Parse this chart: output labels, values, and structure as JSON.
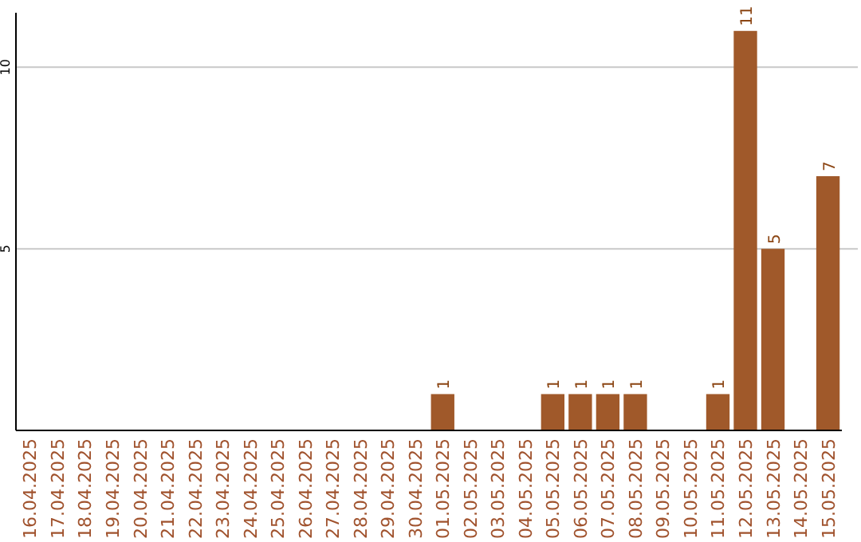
{
  "chart_data": {
    "type": "bar",
    "categories": [
      "16.04.2025",
      "17.04.2025",
      "18.04.2025",
      "19.04.2025",
      "20.04.2025",
      "21.04.2025",
      "22.04.2025",
      "23.04.2025",
      "24.04.2025",
      "25.04.2025",
      "26.04.2025",
      "27.04.2025",
      "28.04.2025",
      "29.04.2025",
      "30.04.2025",
      "01.05.2025",
      "02.05.2025",
      "03.05.2025",
      "04.05.2025",
      "05.05.2025",
      "06.05.2025",
      "07.05.2025",
      "08.05.2025",
      "09.05.2025",
      "10.05.2025",
      "11.05.2025",
      "12.05.2025",
      "13.05.2025",
      "14.05.2025",
      "15.05.2025"
    ],
    "values": [
      0,
      0,
      0,
      0,
      0,
      0,
      0,
      0,
      0,
      0,
      0,
      0,
      0,
      0,
      0,
      1,
      0,
      0,
      0,
      1,
      1,
      1,
      1,
      0,
      0,
      1,
      11,
      5,
      0,
      7
    ],
    "value_labels": [
      null,
      null,
      null,
      null,
      null,
      null,
      null,
      null,
      null,
      null,
      null,
      null,
      null,
      null,
      null,
      "1",
      null,
      null,
      null,
      "1",
      "1",
      "1",
      "1",
      null,
      null,
      "1",
      "11",
      "5",
      null,
      "7"
    ],
    "color": "#a0592a",
    "ylim": [
      0,
      11.5
    ],
    "yticks": [
      5,
      10
    ],
    "grid": "y"
  }
}
